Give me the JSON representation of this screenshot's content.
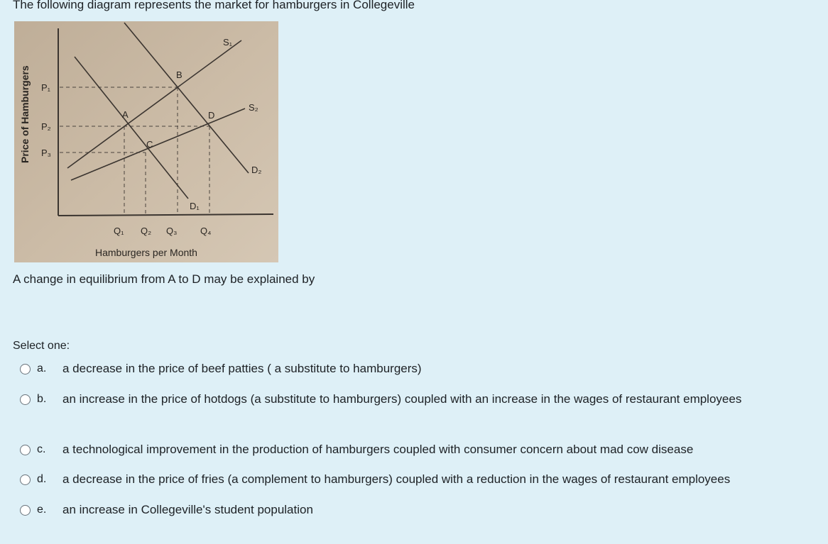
{
  "question": "The following diagram represents the market for hamburgers in Collegeville",
  "diagram": {
    "y_axis_label": "Price of Hamburgers",
    "x_axis_label": "Hamburgers per Month",
    "price_labels": [
      "P₁",
      "P₂",
      "P₃"
    ],
    "quantity_labels": [
      "Q₁",
      "Q₂",
      "Q₃",
      "Q₄"
    ],
    "curve_labels": {
      "s1": "S₁",
      "s2": "S₂",
      "d1": "D₁",
      "d2": "D₂"
    },
    "point_labels": [
      "A",
      "B",
      "C",
      "D"
    ]
  },
  "prompt": "A change in equilibrium from A to D may be explained by",
  "select_label": "Select one:",
  "options": [
    {
      "letter": "a.",
      "text": "a decrease in the price of beef patties ( a substitute to hamburgers)"
    },
    {
      "letter": "b.",
      "text": "an increase in the price of hotdogs (a substitute to hamburgers) coupled with an increase in the wages of restaurant employees"
    },
    {
      "letter": "c.",
      "text": "a technological improvement in the production of hamburgers coupled with consumer concern about mad cow disease"
    },
    {
      "letter": "d.",
      "text": "a decrease in the price of fries (a complement to hamburgers) coupled with a reduction in the wages of restaurant employees"
    },
    {
      "letter": "e.",
      "text": "an increase in Collegeville's student population"
    }
  ]
}
